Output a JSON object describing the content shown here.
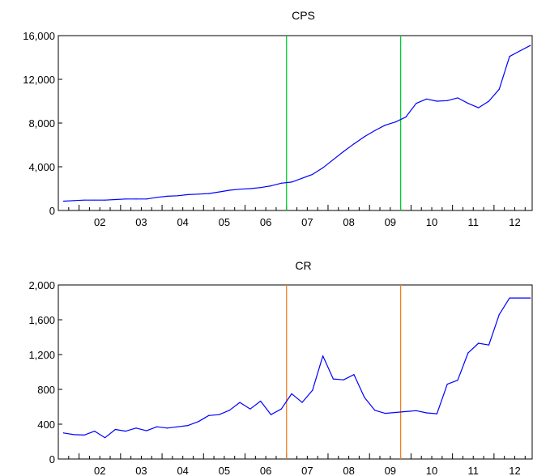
{
  "chart_data": [
    {
      "type": "line",
      "title": "CPS",
      "ylim": [
        0,
        16000
      ],
      "yticks": [
        0,
        4000,
        8000,
        12000,
        16000
      ],
      "yticklabels": [
        "0",
        "4,000",
        "8,000",
        "12,000",
        "16,000"
      ],
      "xlim": [
        2001.5,
        2012.92
      ],
      "xticklabels": [
        "02",
        "03",
        "04",
        "05",
        "06",
        "07",
        "08",
        "09",
        "10",
        "11",
        "12"
      ],
      "line_color": "#0000ff",
      "vline_color": "#00cc33",
      "vlines": [
        2007.0,
        2009.75
      ],
      "grid": false,
      "series": [
        {
          "x": [
            2001.625,
            2001.875,
            2002.125,
            2002.375,
            2002.625,
            2002.875,
            2003.125,
            2003.375,
            2003.625,
            2003.875,
            2004.125,
            2004.375,
            2004.625,
            2004.875,
            2005.125,
            2005.375,
            2005.625,
            2005.875,
            2006.125,
            2006.375,
            2006.625,
            2006.875,
            2007.125,
            2007.375,
            2007.625,
            2007.875,
            2008.125,
            2008.375,
            2008.625,
            2008.875,
            2009.125,
            2009.375,
            2009.625,
            2009.875,
            2010.125,
            2010.375,
            2010.625,
            2010.875,
            2011.125,
            2011.375,
            2011.625,
            2011.875,
            2012.125,
            2012.375,
            2012.625,
            2012.875
          ],
          "values": [
            850,
            900,
            950,
            950,
            950,
            1000,
            1050,
            1050,
            1050,
            1200,
            1300,
            1350,
            1450,
            1500,
            1550,
            1700,
            1850,
            1950,
            2000,
            2100,
            2250,
            2500,
            2600,
            2950,
            3300,
            3900,
            4650,
            5400,
            6100,
            6750,
            7300,
            7800,
            8100,
            8550,
            9800,
            10200,
            10000,
            10050,
            10300,
            9800,
            9400,
            10000,
            11100,
            14100,
            14600,
            15100
          ]
        }
      ]
    },
    {
      "type": "line",
      "title": "CR",
      "ylim": [
        0,
        2000
      ],
      "yticks": [
        0,
        400,
        800,
        1200,
        1600,
        2000
      ],
      "yticklabels": [
        "0",
        "400",
        "800",
        "1,200",
        "1,600",
        "2,000"
      ],
      "xlim": [
        2001.5,
        2012.92
      ],
      "xticklabels": [
        "02",
        "03",
        "04",
        "05",
        "06",
        "07",
        "08",
        "09",
        "10",
        "11",
        "12"
      ],
      "line_color": "#0000ff",
      "vline_color": "#f08020",
      "vlines": [
        2007.0,
        2009.75
      ],
      "grid": false,
      "series": [
        {
          "x": [
            2001.625,
            2001.875,
            2002.125,
            2002.375,
            2002.625,
            2002.875,
            2003.125,
            2003.375,
            2003.625,
            2003.875,
            2004.125,
            2004.375,
            2004.625,
            2004.875,
            2005.125,
            2005.375,
            2005.625,
            2005.875,
            2006.125,
            2006.375,
            2006.625,
            2006.875,
            2007.125,
            2007.375,
            2007.625,
            2007.875,
            2008.125,
            2008.375,
            2008.625,
            2008.875,
            2009.125,
            2009.375,
            2009.625,
            2009.875,
            2010.125,
            2010.375,
            2010.625,
            2010.875,
            2011.125,
            2011.375,
            2011.625,
            2011.875,
            2012.125,
            2012.375,
            2012.625,
            2012.875
          ],
          "values": [
            300,
            280,
            275,
            320,
            245,
            340,
            320,
            355,
            325,
            370,
            355,
            370,
            385,
            430,
            500,
            510,
            560,
            650,
            575,
            665,
            510,
            575,
            750,
            650,
            790,
            1185,
            920,
            910,
            970,
            710,
            560,
            525,
            535,
            545,
            555,
            530,
            520,
            860,
            905,
            1220,
            1330,
            1310,
            1660,
            1850,
            1850,
            1850
          ]
        }
      ]
    }
  ]
}
